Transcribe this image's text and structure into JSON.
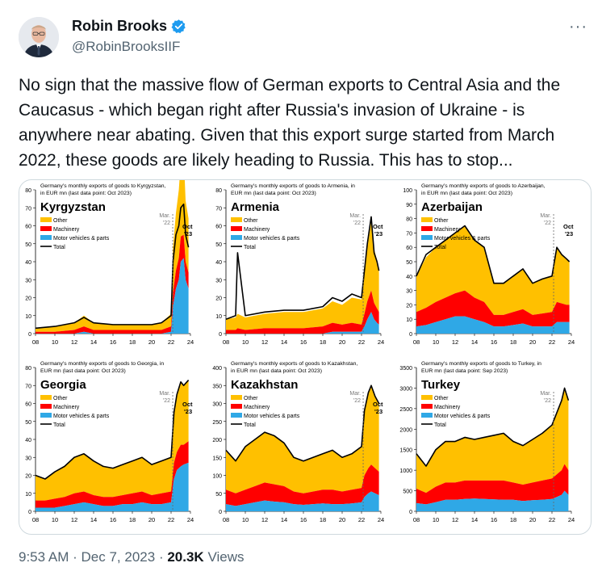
{
  "author": {
    "name": "Robin Brooks",
    "handle": "@RobinBrooksIIF",
    "more_icon": "more-horizontal-icon",
    "verified_icon": "verified-badge-icon"
  },
  "tweet": {
    "text": "No sign that the massive flow of German exports to Central Asia and the Caucasus - which began right after Russia's invasion of Ukraine - is anywhere near abating. Given that this export surge started from March 2022, these goods are likely heading to Russia. This has to stop..."
  },
  "meta": {
    "time": "9:53 AM",
    "sep": "·",
    "date": "Dec 7, 2023",
    "views_count": "20.3K",
    "views_label": "Views"
  },
  "legend_labels": {
    "other": "Other",
    "machinery": "Machinery",
    "motor": "Motor vehicles & parts",
    "total": "Total"
  },
  "colors": {
    "other": "#ffc000",
    "machinery": "#ff0000",
    "motor": "#2fa8e6",
    "total": "#000000"
  },
  "chart_data": [
    {
      "type": "area",
      "country": "Kyrgyzstan",
      "title_line1": "Germany's monthly exports of goods to Kyrgyzstan,",
      "title_line2": "in EUR mn (last data point: Oct 2023)",
      "ylim": [
        0,
        80
      ],
      "yticks": [
        "0",
        "10",
        "20",
        "30",
        "40",
        "50",
        "60",
        "70",
        "80"
      ],
      "xticks": [
        "08",
        "10",
        "12",
        "14",
        "16",
        "18",
        "20",
        "22",
        "24"
      ],
      "mar_label_1": "Mar.",
      "mar_label_2": "'22",
      "last_label_1": "Oct",
      "last_label_2": "'23",
      "x": [
        2008,
        2010,
        2012,
        2013,
        2014,
        2016,
        2018,
        2020,
        2021,
        2022,
        2022.2,
        2022.5,
        2022.8,
        2023,
        2023.3,
        2023.5,
        2023.8
      ],
      "series": [
        {
          "name": "Total",
          "values": [
            3,
            4,
            6,
            9,
            6,
            5,
            5,
            5,
            6,
            10,
            40,
            55,
            60,
            70,
            72,
            55,
            48
          ]
        },
        {
          "name": "Other",
          "values": [
            2,
            3,
            4,
            6,
            4,
            3,
            3,
            3,
            4,
            7,
            25,
            32,
            38,
            42,
            45,
            34,
            30
          ]
        },
        {
          "name": "Machinery",
          "values": [
            1,
            1,
            2,
            3,
            2,
            2,
            2,
            2,
            2,
            3,
            8,
            10,
            12,
            14,
            13,
            10,
            9
          ]
        },
        {
          "name": "Motor vehicles & parts",
          "values": [
            0,
            0,
            0,
            1,
            0,
            0,
            0,
            0,
            0,
            1,
            15,
            25,
            30,
            40,
            42,
            30,
            25
          ]
        }
      ]
    },
    {
      "type": "area",
      "country": "Armenia",
      "title_line1": "Germany's monthly exports of goods to Armenia, in",
      "title_line2": "EUR mn (last data point: Oct 2023)",
      "ylim": [
        0,
        80
      ],
      "yticks": [
        "0",
        "10",
        "20",
        "30",
        "40",
        "50",
        "60",
        "70",
        "80"
      ],
      "xticks": [
        "08",
        "10",
        "12",
        "14",
        "16",
        "18",
        "20",
        "22",
        "24"
      ],
      "mar_label_1": "Mar.",
      "mar_label_2": "'22",
      "last_label_1": "Oct",
      "last_label_2": "'23",
      "x": [
        2008,
        2009,
        2009.2,
        2010,
        2012,
        2014,
        2016,
        2018,
        2019,
        2020,
        2021,
        2022,
        2022.3,
        2022.6,
        2023,
        2023.3,
        2023.6,
        2023.8
      ],
      "series": [
        {
          "name": "Total",
          "values": [
            8,
            10,
            45,
            10,
            12,
            13,
            13,
            15,
            20,
            18,
            22,
            20,
            35,
            50,
            65,
            45,
            40,
            35
          ]
        },
        {
          "name": "Other",
          "values": [
            6,
            7,
            8,
            7,
            8,
            9,
            9,
            10,
            12,
            11,
            14,
            14,
            22,
            30,
            38,
            30,
            27,
            24
          ]
        },
        {
          "name": "Machinery",
          "values": [
            2,
            2,
            3,
            2,
            3,
            3,
            3,
            4,
            5,
            4,
            5,
            4,
            7,
            10,
            12,
            9,
            8,
            7
          ]
        },
        {
          "name": "Motor vehicles & parts",
          "values": [
            0,
            0,
            0,
            0,
            0,
            0,
            0,
            0,
            1,
            1,
            1,
            1,
            4,
            8,
            12,
            8,
            6,
            5
          ]
        }
      ]
    },
    {
      "type": "area",
      "country": "Azerbaijan",
      "title_line1": "Germany's monthly exports of goods to Azerbaijan,",
      "title_line2": "in EUR mn (last data point: Oct 2023)",
      "ylim": [
        0,
        100
      ],
      "yticks": [
        "0",
        "10",
        "20",
        "30",
        "40",
        "50",
        "60",
        "70",
        "80",
        "90",
        "100"
      ],
      "xticks": [
        "08",
        "10",
        "12",
        "14",
        "16",
        "18",
        "20",
        "22",
        "24"
      ],
      "mar_label_1": "Mar.",
      "mar_label_2": "'22",
      "last_label_1": "Oct",
      "last_label_2": "'23",
      "x": [
        2008,
        2009,
        2010,
        2011,
        2012,
        2013,
        2014,
        2015,
        2016,
        2017,
        2018,
        2019,
        2020,
        2021,
        2022,
        2022.5,
        2023,
        2023.5,
        2023.8
      ],
      "series": [
        {
          "name": "Total",
          "values": [
            40,
            55,
            60,
            65,
            70,
            75,
            65,
            60,
            35,
            35,
            40,
            45,
            35,
            38,
            40,
            60,
            55,
            52,
            50
          ]
        },
        {
          "name": "Other",
          "values": [
            25,
            35,
            38,
            40,
            42,
            45,
            40,
            38,
            22,
            22,
            25,
            28,
            22,
            24,
            25,
            38,
            34,
            32,
            30
          ]
        },
        {
          "name": "Machinery",
          "values": [
            10,
            12,
            14,
            15,
            16,
            18,
            15,
            14,
            8,
            8,
            9,
            10,
            8,
            9,
            10,
            14,
            13,
            12,
            12
          ]
        },
        {
          "name": "Motor vehicles & parts",
          "values": [
            5,
            6,
            8,
            10,
            12,
            12,
            10,
            8,
            5,
            5,
            6,
            7,
            5,
            5,
            5,
            8,
            8,
            8,
            8
          ]
        }
      ]
    },
    {
      "type": "area",
      "country": "Georgia",
      "title_line1": "Germany's monthly exports of goods to Georgia, in",
      "title_line2": "EUR mn (last data point: Oct 2023)",
      "ylim": [
        0,
        80
      ],
      "yticks": [
        "0",
        "10",
        "20",
        "30",
        "40",
        "50",
        "60",
        "70",
        "80"
      ],
      "xticks": [
        "08",
        "10",
        "12",
        "14",
        "16",
        "18",
        "20",
        "22",
        "24"
      ],
      "mar_label_1": "Mar.",
      "mar_label_2": "'22",
      "last_label_1": "Oct",
      "last_label_2": "'23",
      "x": [
        2008,
        2009,
        2010,
        2011,
        2012,
        2013,
        2014,
        2015,
        2016,
        2017,
        2018,
        2019,
        2020,
        2021,
        2022,
        2022.3,
        2022.6,
        2023,
        2023.3,
        2023.8
      ],
      "series": [
        {
          "name": "Total",
          "values": [
            20,
            18,
            22,
            25,
            30,
            32,
            28,
            25,
            24,
            26,
            28,
            30,
            26,
            28,
            30,
            55,
            65,
            72,
            70,
            73
          ]
        },
        {
          "name": "Other",
          "values": [
            14,
            12,
            15,
            17,
            20,
            21,
            19,
            17,
            16,
            17,
            18,
            19,
            17,
            18,
            19,
            28,
            32,
            35,
            33,
            34
          ]
        },
        {
          "name": "Machinery",
          "values": [
            4,
            4,
            5,
            5,
            6,
            6,
            5,
            5,
            5,
            5,
            6,
            6,
            5,
            6,
            6,
            9,
            10,
            12,
            11,
            12
          ]
        },
        {
          "name": "Motor vehicles & parts",
          "values": [
            2,
            2,
            2,
            3,
            4,
            5,
            4,
            3,
            3,
            4,
            4,
            5,
            4,
            4,
            5,
            18,
            23,
            25,
            26,
            27
          ]
        }
      ]
    },
    {
      "type": "area",
      "country": "Kazakhstan",
      "title_line1": "Germany's monthly exports of goods to Kazakhstan,",
      "title_line2": "in EUR mn (last data point: Oct 2023)",
      "ylim": [
        0,
        400
      ],
      "yticks": [
        "0",
        "50",
        "100",
        "150",
        "200",
        "250",
        "300",
        "350",
        "400"
      ],
      "xticks": [
        "08",
        "10",
        "12",
        "14",
        "16",
        "18",
        "20",
        "22",
        "24"
      ],
      "mar_label_1": "Mar.",
      "mar_label_2": "'22",
      "last_label_1": "Oct",
      "last_label_2": "'23",
      "x": [
        2008,
        2009,
        2010,
        2011,
        2012,
        2013,
        2014,
        2015,
        2016,
        2017,
        2018,
        2019,
        2020,
        2021,
        2022,
        2022.3,
        2022.7,
        2023,
        2023.4,
        2023.8
      ],
      "series": [
        {
          "name": "Total",
          "values": [
            170,
            140,
            180,
            200,
            220,
            210,
            190,
            150,
            140,
            150,
            160,
            170,
            150,
            160,
            180,
            280,
            330,
            350,
            320,
            300
          ]
        },
        {
          "name": "Other",
          "values": [
            110,
            90,
            120,
            130,
            140,
            135,
            120,
            95,
            90,
            95,
            100,
            110,
            95,
            100,
            115,
            180,
            210,
            220,
            200,
            190
          ]
        },
        {
          "name": "Machinery",
          "values": [
            40,
            35,
            40,
            45,
            50,
            48,
            45,
            35,
            32,
            35,
            38,
            40,
            35,
            38,
            40,
            60,
            70,
            75,
            70,
            65
          ]
        },
        {
          "name": "Motor vehicles & parts",
          "values": [
            20,
            15,
            20,
            25,
            30,
            27,
            25,
            20,
            18,
            20,
            22,
            20,
            20,
            22,
            25,
            40,
            50,
            55,
            50,
            45
          ]
        }
      ]
    },
    {
      "type": "area",
      "country": "Turkey",
      "title_line1": "Germany's monthly exports of goods to Turkey, in",
      "title_line2": "EUR mn (last data point: Sep 2023)",
      "ylim": [
        0,
        3500
      ],
      "yticks": [
        "0",
        "500",
        "1000",
        "1500",
        "2000",
        "2500",
        "3000",
        "3500"
      ],
      "xticks": [
        "08",
        "10",
        "12",
        "14",
        "16",
        "18",
        "20",
        "22",
        "24"
      ],
      "mar_label_1": "Mar.",
      "mar_label_2": "'22",
      "last_label_1": "",
      "last_label_2": "",
      "x": [
        2008,
        2009,
        2010,
        2011,
        2012,
        2013,
        2014,
        2015,
        2016,
        2017,
        2018,
        2019,
        2020,
        2021,
        2022,
        2022.5,
        2023,
        2023.3,
        2023.7
      ],
      "series": [
        {
          "name": "Total",
          "values": [
            1400,
            1100,
            1500,
            1700,
            1700,
            1800,
            1750,
            1800,
            1850,
            1900,
            1700,
            1600,
            1750,
            1900,
            2100,
            2400,
            2700,
            3000,
            2700
          ]
        },
        {
          "name": "Other",
          "values": [
            850,
            650,
            900,
            1000,
            1000,
            1050,
            1000,
            1050,
            1100,
            1150,
            1000,
            950,
            1050,
            1150,
            1300,
            1500,
            1700,
            1850,
            1700
          ]
        },
        {
          "name": "Machinery",
          "values": [
            350,
            280,
            380,
            420,
            420,
            450,
            440,
            450,
            460,
            470,
            420,
            400,
            430,
            470,
            500,
            550,
            600,
            650,
            600
          ]
        },
        {
          "name": "Motor vehicles & parts",
          "values": [
            200,
            170,
            220,
            280,
            280,
            300,
            310,
            300,
            290,
            280,
            280,
            250,
            270,
            280,
            300,
            350,
            400,
            500,
            400
          ]
        }
      ]
    }
  ]
}
